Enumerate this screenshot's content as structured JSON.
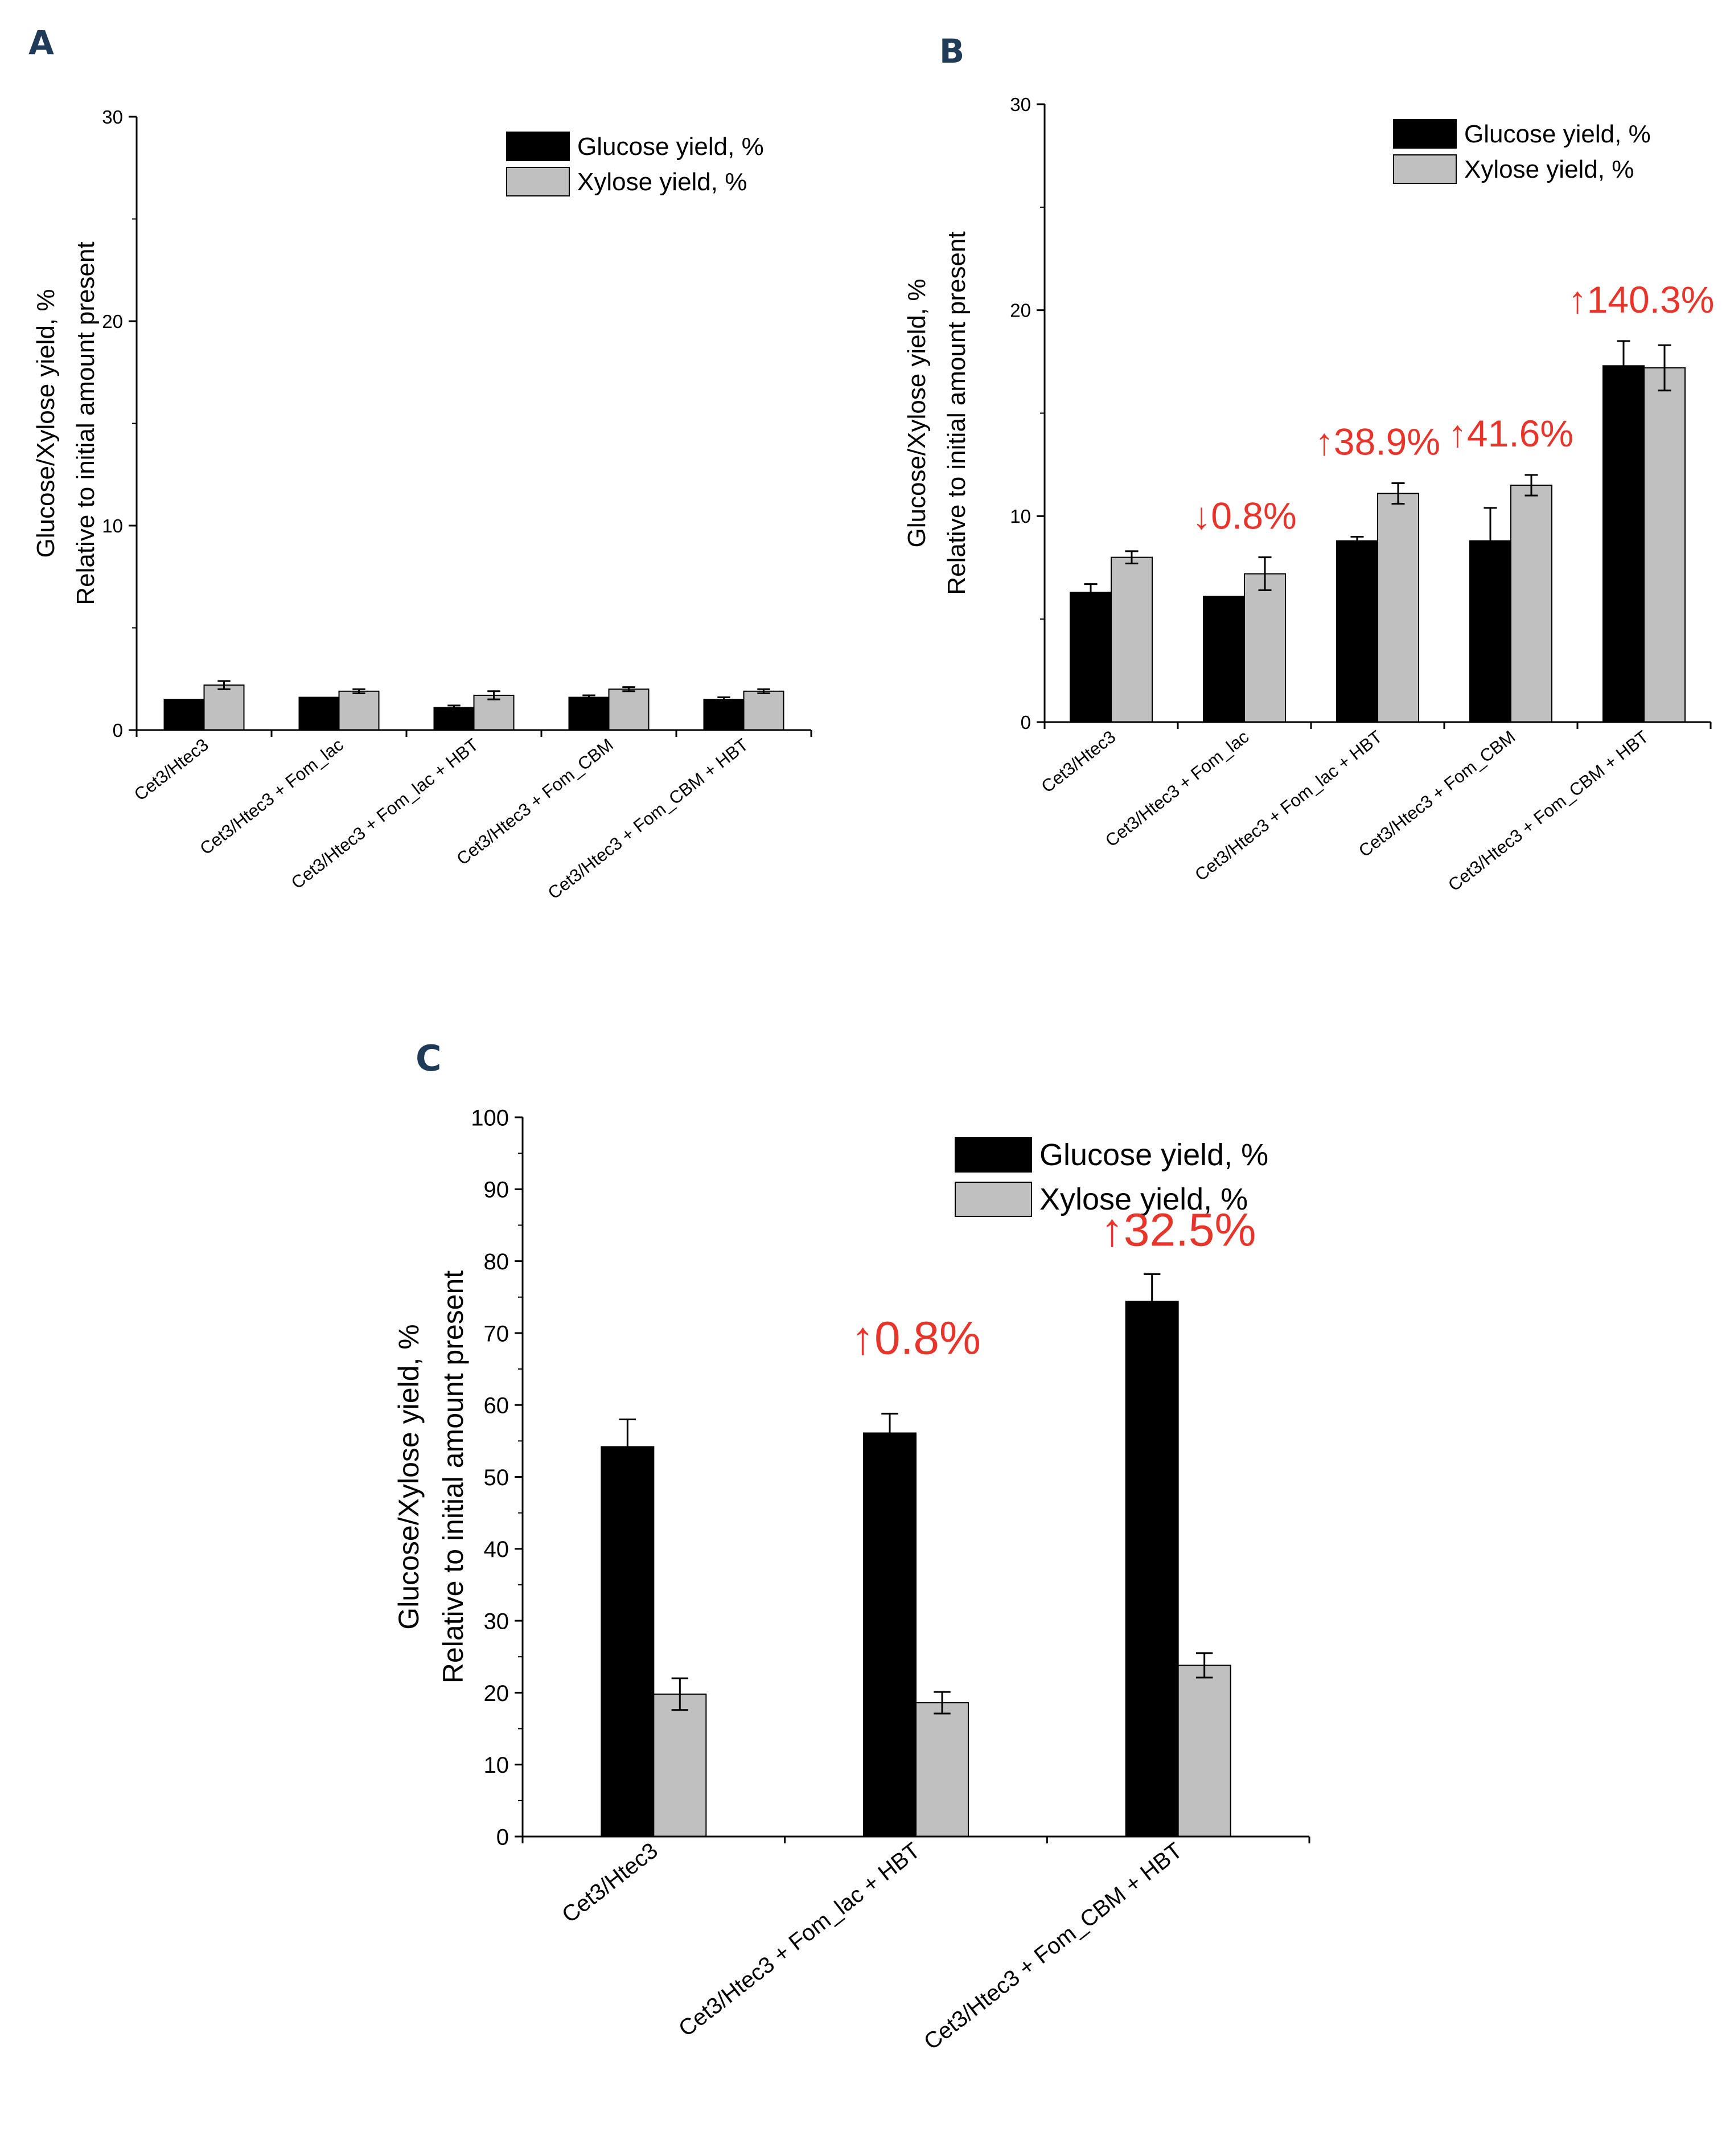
{
  "colors": {
    "glucose": "#000000",
    "xylose": "#c0c0c0",
    "axis": "#000000",
    "annotation": "#e8352b",
    "panel_letter": "#1f3b57"
  },
  "legend": {
    "glucose_label": "Glucose yield, %",
    "xylose_label": "Xylose yield, %"
  },
  "ylabel_line1": "Glucose/Xylose yield, %",
  "ylabel_line2": "Relative to initial amount present",
  "chart_data": [
    {
      "panel": "A",
      "type": "bar",
      "categories": [
        "Cet3/Htec3",
        "Cet3/Htec3 + Fom_lac",
        "Cet3/Htec3 + Fom_lac + HBT",
        "Cet3/Htec3 + Fom_CBM",
        "Cet3/Htec3 + Fom_CBM + HBT"
      ],
      "series": [
        {
          "name": "Glucose yield, %",
          "values": [
            1.5,
            1.6,
            1.1,
            1.6,
            1.5
          ],
          "errors": [
            0.0,
            0.0,
            0.1,
            0.1,
            0.1
          ]
        },
        {
          "name": "Xylose yield, %",
          "values": [
            2.2,
            1.9,
            1.7,
            2.0,
            1.9
          ],
          "errors": [
            0.2,
            0.1,
            0.2,
            0.1,
            0.1
          ]
        }
      ],
      "ylim": [
        0,
        30
      ],
      "yticks": [
        0,
        10,
        20,
        30
      ],
      "annotations": []
    },
    {
      "panel": "B",
      "type": "bar",
      "categories": [
        "Cet3/Htec3",
        "Cet3/Htec3 + Fom_lac",
        "Cet3/Htec3 + Fom_lac + HBT",
        "Cet3/Htec3 + Fom_CBM",
        "Cet3/Htec3 + Fom_CBM + HBT"
      ],
      "series": [
        {
          "name": "Glucose yield, %",
          "values": [
            6.3,
            6.1,
            8.8,
            8.8,
            17.3
          ],
          "errors": [
            0.4,
            0.0,
            0.2,
            1.6,
            1.2
          ]
        },
        {
          "name": "Xylose yield, %",
          "values": [
            8.0,
            7.2,
            11.1,
            11.5,
            17.2
          ],
          "errors": [
            0.3,
            0.8,
            0.5,
            0.5,
            1.1
          ]
        }
      ],
      "ylim": [
        0,
        30
      ],
      "yticks": [
        0,
        10,
        20,
        30
      ],
      "annotations": [
        {
          "category": 1,
          "text": "↓0.8%"
        },
        {
          "category": 2,
          "text": "↑38.9%"
        },
        {
          "category": 3,
          "text": "↑41.6%"
        },
        {
          "category": 4,
          "text": "↑140.3%"
        }
      ]
    },
    {
      "panel": "C",
      "type": "bar",
      "categories": [
        "Cet3/Htec3",
        "Cet3/Htec3 + Fom_lac + HBT",
        "Cet3/Htec3 + Fom_CBM + HBT"
      ],
      "series": [
        {
          "name": "Glucose yield, %",
          "values": [
            54.2,
            56.1,
            74.4
          ],
          "errors": [
            3.8,
            2.7,
            3.8
          ]
        },
        {
          "name": "Xylose yield, %",
          "values": [
            19.8,
            18.6,
            23.8
          ],
          "errors": [
            2.2,
            1.5,
            1.7
          ]
        }
      ],
      "ylim": [
        0,
        100
      ],
      "yticks": [
        0,
        10,
        20,
        30,
        40,
        50,
        60,
        70,
        80,
        90,
        100
      ],
      "annotations": [
        {
          "category": 1,
          "text": "↑0.8%"
        },
        {
          "category": 2,
          "text": "↑32.5%"
        }
      ]
    }
  ]
}
